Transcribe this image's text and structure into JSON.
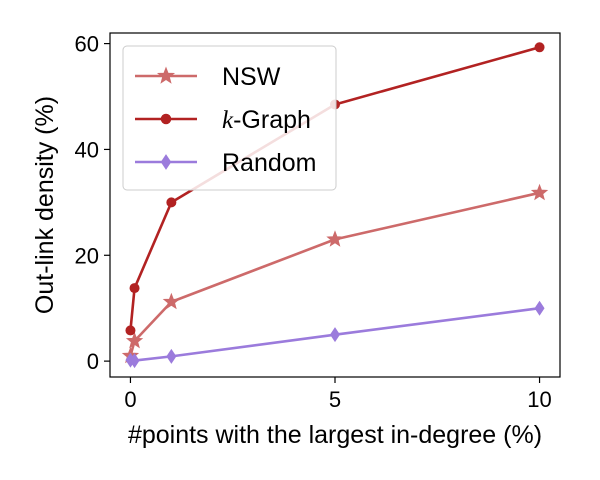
{
  "chart_data": {
    "type": "line",
    "xlabel": "#points with the largest in-degree (%)",
    "ylabel": "Out-link density (%)",
    "xlim": [
      -0.5,
      10.5
    ],
    "ylim": [
      -3,
      62
    ],
    "xticks": [
      0,
      5,
      10
    ],
    "yticks": [
      0,
      20,
      40,
      60
    ],
    "grid": false,
    "legend": "top-left",
    "series": [
      {
        "name": "NSW",
        "color": "#cd6a6a",
        "marker": "star",
        "x": [
          0,
          0.1,
          1,
          5,
          10
        ],
        "y": [
          1,
          3.8,
          11.2,
          23,
          31.8
        ]
      },
      {
        "name": "k-Graph",
        "name_italic_part": "k",
        "name_rest": "-Graph",
        "color": "#b22222",
        "marker": "circle",
        "x": [
          0,
          0.1,
          1,
          5,
          10
        ],
        "y": [
          5.8,
          13.8,
          30,
          48.5,
          59.3
        ]
      },
      {
        "name": "Random",
        "color": "#9b7bdc",
        "marker": "diamond",
        "x": [
          0,
          0.1,
          1,
          5,
          10
        ],
        "y": [
          0.2,
          0.1,
          0.9,
          5,
          10
        ]
      }
    ]
  }
}
